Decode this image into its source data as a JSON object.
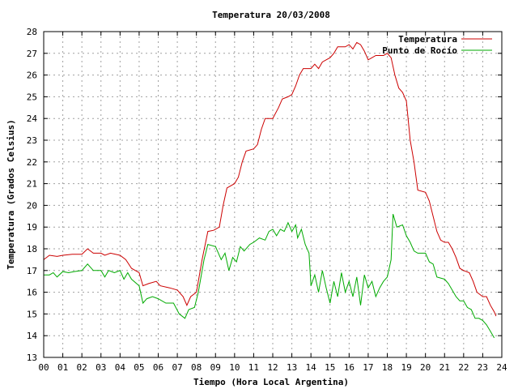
{
  "chart_data": {
    "type": "line",
    "title": "Temperatura 20/03/2008",
    "xlabel": "Tiempo (Hora Local Argentina)",
    "ylabel": "Temperatura (Grados Celsius)",
    "xlim": [
      0,
      24
    ],
    "ylim": [
      13,
      28
    ],
    "grid": true,
    "legend_position": "top-right",
    "x_ticks": [
      "00",
      "01",
      "02",
      "03",
      "04",
      "05",
      "06",
      "07",
      "08",
      "09",
      "10",
      "11",
      "12",
      "13",
      "14",
      "15",
      "16",
      "17",
      "18",
      "19",
      "20",
      "21",
      "22",
      "23",
      "24"
    ],
    "y_ticks": [
      "13",
      "14",
      "15",
      "16",
      "17",
      "18",
      "19",
      "20",
      "21",
      "22",
      "23",
      "24",
      "25",
      "26",
      "27",
      "28"
    ],
    "series": [
      {
        "name": "Temperatura",
        "color": "#cc0000",
        "points": [
          [
            0.0,
            17.5
          ],
          [
            0.3,
            17.7
          ],
          [
            0.7,
            17.65
          ],
          [
            1.0,
            17.7
          ],
          [
            1.5,
            17.75
          ],
          [
            2.0,
            17.75
          ],
          [
            2.3,
            18.0
          ],
          [
            2.6,
            17.8
          ],
          [
            3.0,
            17.8
          ],
          [
            3.2,
            17.7
          ],
          [
            3.5,
            17.8
          ],
          [
            4.0,
            17.7
          ],
          [
            4.3,
            17.5
          ],
          [
            4.6,
            17.1
          ],
          [
            5.0,
            16.9
          ],
          [
            5.2,
            16.3
          ],
          [
            5.5,
            16.4
          ],
          [
            5.9,
            16.5
          ],
          [
            6.1,
            16.3
          ],
          [
            6.6,
            16.2
          ],
          [
            7.0,
            16.1
          ],
          [
            7.3,
            15.8
          ],
          [
            7.5,
            15.4
          ],
          [
            7.7,
            15.8
          ],
          [
            8.0,
            16.0
          ],
          [
            8.3,
            17.5
          ],
          [
            8.6,
            18.8
          ],
          [
            8.9,
            18.85
          ],
          [
            9.2,
            19.0
          ],
          [
            9.4,
            20.0
          ],
          [
            9.6,
            20.8
          ],
          [
            10.0,
            21.0
          ],
          [
            10.2,
            21.3
          ],
          [
            10.4,
            22.0
          ],
          [
            10.6,
            22.5
          ],
          [
            11.0,
            22.6
          ],
          [
            11.2,
            22.8
          ],
          [
            11.4,
            23.5
          ],
          [
            11.6,
            24.0
          ],
          [
            12.0,
            24.0
          ],
          [
            12.3,
            24.5
          ],
          [
            12.5,
            24.9
          ],
          [
            12.8,
            25.0
          ],
          [
            13.0,
            25.1
          ],
          [
            13.2,
            25.5
          ],
          [
            13.4,
            26.0
          ],
          [
            13.6,
            26.3
          ],
          [
            14.0,
            26.3
          ],
          [
            14.2,
            26.5
          ],
          [
            14.4,
            26.3
          ],
          [
            14.6,
            26.6
          ],
          [
            15.0,
            26.8
          ],
          [
            15.2,
            27.0
          ],
          [
            15.4,
            27.3
          ],
          [
            15.8,
            27.3
          ],
          [
            16.0,
            27.4
          ],
          [
            16.2,
            27.2
          ],
          [
            16.4,
            27.5
          ],
          [
            16.6,
            27.4
          ],
          [
            16.8,
            27.1
          ],
          [
            17.0,
            26.7
          ],
          [
            17.2,
            26.8
          ],
          [
            17.4,
            26.9
          ],
          [
            17.8,
            26.9
          ],
          [
            18.0,
            27.0
          ],
          [
            18.2,
            26.8
          ],
          [
            18.4,
            26.0
          ],
          [
            18.6,
            25.4
          ],
          [
            18.8,
            25.2
          ],
          [
            19.0,
            24.8
          ],
          [
            19.2,
            23.0
          ],
          [
            19.4,
            22.0
          ],
          [
            19.6,
            20.7
          ],
          [
            20.0,
            20.6
          ],
          [
            20.2,
            20.2
          ],
          [
            20.4,
            19.5
          ],
          [
            20.6,
            18.8
          ],
          [
            20.8,
            18.4
          ],
          [
            21.0,
            18.3
          ],
          [
            21.2,
            18.3
          ],
          [
            21.4,
            18.0
          ],
          [
            21.6,
            17.6
          ],
          [
            21.8,
            17.1
          ],
          [
            22.0,
            17.0
          ],
          [
            22.3,
            16.9
          ],
          [
            22.5,
            16.5
          ],
          [
            22.7,
            16.0
          ],
          [
            23.0,
            15.8
          ],
          [
            23.2,
            15.8
          ],
          [
            23.4,
            15.4
          ],
          [
            23.6,
            15.1
          ],
          [
            23.7,
            14.9
          ]
        ]
      },
      {
        "name": "Punto de Rocío",
        "color": "#00aa00",
        "points": [
          [
            0.0,
            16.8
          ],
          [
            0.3,
            16.8
          ],
          [
            0.5,
            16.9
          ],
          [
            0.7,
            16.7
          ],
          [
            1.0,
            16.95
          ],
          [
            1.3,
            16.9
          ],
          [
            1.6,
            16.95
          ],
          [
            2.0,
            17.0
          ],
          [
            2.3,
            17.3
          ],
          [
            2.6,
            17.0
          ],
          [
            3.0,
            17.0
          ],
          [
            3.2,
            16.7
          ],
          [
            3.4,
            17.0
          ],
          [
            3.7,
            16.9
          ],
          [
            4.0,
            17.0
          ],
          [
            4.2,
            16.6
          ],
          [
            4.4,
            16.9
          ],
          [
            4.6,
            16.6
          ],
          [
            5.0,
            16.3
          ],
          [
            5.2,
            15.5
          ],
          [
            5.4,
            15.7
          ],
          [
            5.7,
            15.8
          ],
          [
            6.0,
            15.7
          ],
          [
            6.4,
            15.5
          ],
          [
            6.8,
            15.5
          ],
          [
            7.1,
            15.0
          ],
          [
            7.4,
            14.8
          ],
          [
            7.6,
            15.2
          ],
          [
            7.9,
            15.3
          ],
          [
            8.1,
            16.0
          ],
          [
            8.4,
            17.5
          ],
          [
            8.6,
            18.2
          ],
          [
            9.0,
            18.1
          ],
          [
            9.3,
            17.5
          ],
          [
            9.5,
            17.8
          ],
          [
            9.7,
            17.0
          ],
          [
            9.9,
            17.6
          ],
          [
            10.1,
            17.4
          ],
          [
            10.3,
            18.1
          ],
          [
            10.5,
            17.9
          ],
          [
            10.8,
            18.2
          ],
          [
            11.0,
            18.3
          ],
          [
            11.3,
            18.5
          ],
          [
            11.6,
            18.4
          ],
          [
            11.8,
            18.8
          ],
          [
            12.0,
            18.9
          ],
          [
            12.2,
            18.6
          ],
          [
            12.4,
            18.9
          ],
          [
            12.6,
            18.8
          ],
          [
            12.8,
            19.2
          ],
          [
            13.0,
            18.8
          ],
          [
            13.2,
            19.1
          ],
          [
            13.3,
            18.5
          ],
          [
            13.5,
            18.9
          ],
          [
            13.7,
            18.2
          ],
          [
            13.9,
            17.8
          ],
          [
            14.0,
            16.3
          ],
          [
            14.2,
            16.8
          ],
          [
            14.4,
            16.0
          ],
          [
            14.6,
            17.0
          ],
          [
            14.8,
            16.2
          ],
          [
            15.0,
            15.5
          ],
          [
            15.2,
            16.5
          ],
          [
            15.4,
            15.8
          ],
          [
            15.6,
            16.9
          ],
          [
            15.8,
            16.0
          ],
          [
            16.0,
            16.5
          ],
          [
            16.2,
            15.8
          ],
          [
            16.4,
            16.7
          ],
          [
            16.6,
            15.4
          ],
          [
            16.8,
            16.8
          ],
          [
            17.0,
            16.2
          ],
          [
            17.2,
            16.5
          ],
          [
            17.4,
            15.8
          ],
          [
            17.6,
            16.2
          ],
          [
            17.8,
            16.5
          ],
          [
            18.0,
            16.7
          ],
          [
            18.2,
            17.5
          ],
          [
            18.3,
            19.6
          ],
          [
            18.5,
            19.0
          ],
          [
            18.8,
            19.1
          ],
          [
            19.0,
            18.6
          ],
          [
            19.2,
            18.3
          ],
          [
            19.4,
            17.9
          ],
          [
            19.6,
            17.8
          ],
          [
            20.0,
            17.8
          ],
          [
            20.2,
            17.4
          ],
          [
            20.4,
            17.3
          ],
          [
            20.6,
            16.7
          ],
          [
            21.0,
            16.6
          ],
          [
            21.2,
            16.4
          ],
          [
            21.4,
            16.1
          ],
          [
            21.6,
            15.8
          ],
          [
            21.8,
            15.6
          ],
          [
            22.0,
            15.6
          ],
          [
            22.2,
            15.3
          ],
          [
            22.4,
            15.2
          ],
          [
            22.6,
            14.8
          ],
          [
            22.8,
            14.8
          ],
          [
            23.0,
            14.7
          ],
          [
            23.2,
            14.5
          ],
          [
            23.4,
            14.2
          ],
          [
            23.6,
            13.9
          ]
        ]
      }
    ]
  }
}
